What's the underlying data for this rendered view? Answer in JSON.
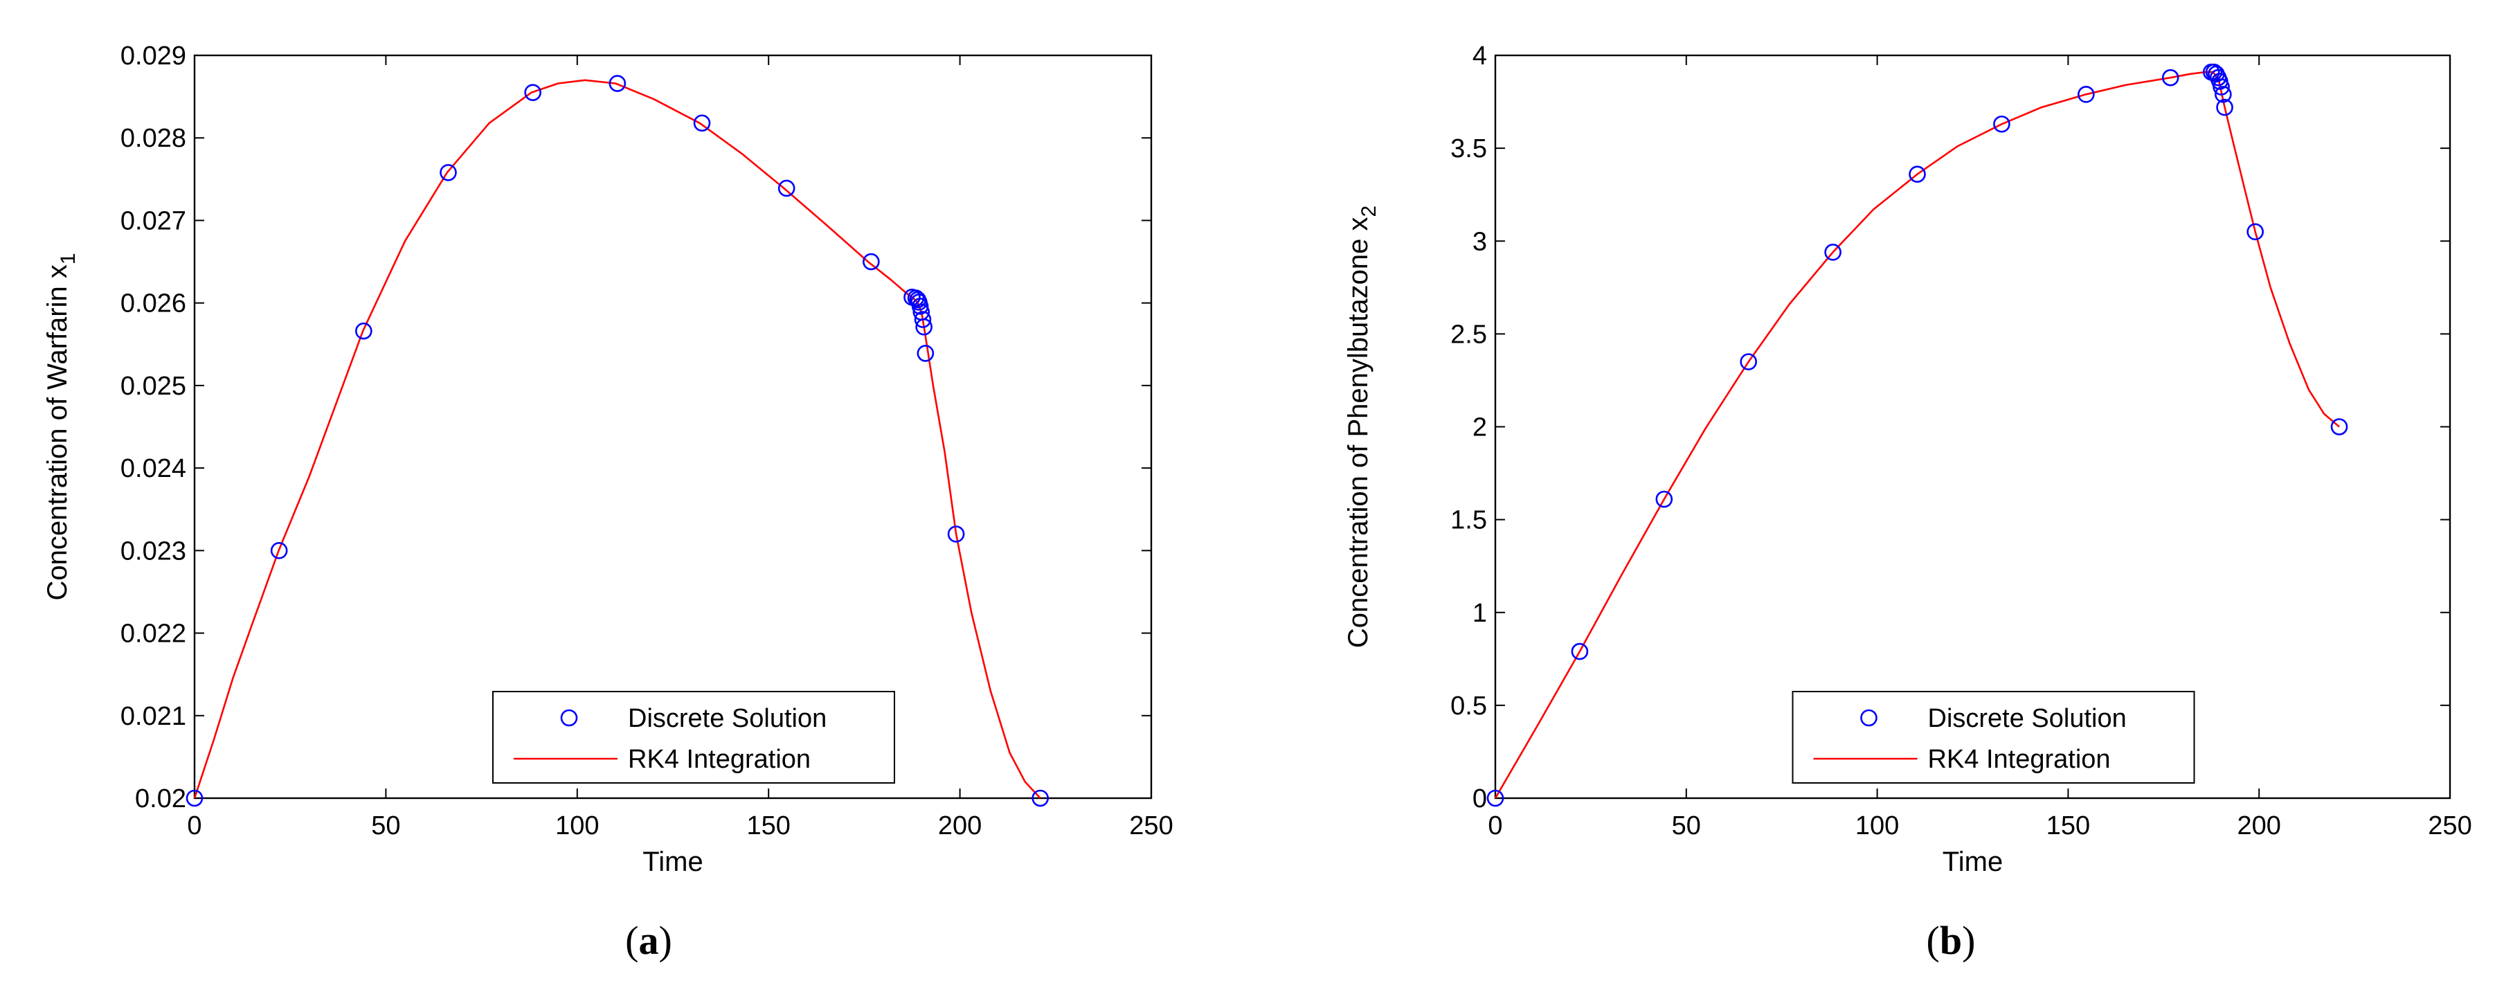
{
  "chart_data": [
    {
      "type": "line",
      "panel_label": "(a)",
      "panel_letter": "a",
      "xlabel": "Time",
      "ylabel": "Concentration of Warfarin x",
      "ylabel_subscript": "1",
      "xlim": [
        0,
        250
      ],
      "ylim": [
        0.02,
        0.029
      ],
      "xticks": [
        0,
        50,
        100,
        150,
        200,
        250
      ],
      "xtick_labels": [
        "0",
        "50",
        "100",
        "150",
        "200",
        "250"
      ],
      "yticks": [
        0.02,
        0.021,
        0.022,
        0.023,
        0.024,
        0.025,
        0.026,
        0.027,
        0.028,
        0.029
      ],
      "ytick_labels": [
        "0.02",
        "0.021",
        "0.022",
        "0.023",
        "0.024",
        "0.025",
        "0.026",
        "0.027",
        "0.028",
        "0.029"
      ],
      "legend": {
        "position": "bottom-center",
        "entries": [
          "Discrete Solution",
          "RK4 Integration"
        ]
      },
      "series": [
        {
          "name": "Discrete Solution",
          "style": "markers",
          "marker": "circle",
          "color": "#0000ff",
          "x": [
            0,
            22.1,
            44.2,
            66.3,
            88.4,
            110.5,
            132.6,
            154.7,
            176.8,
            187.5,
            188.5,
            189.0,
            189.3,
            189.6,
            189.9,
            190.3,
            190.6,
            191.0,
            199.0,
            221.0
          ],
          "y": [
            0.02,
            0.023,
            0.02566,
            0.02758,
            0.02855,
            0.02866,
            0.02818,
            0.02739,
            0.0265,
            0.02607,
            0.02606,
            0.02604,
            0.02601,
            0.02596,
            0.02589,
            0.0258,
            0.02571,
            0.02539,
            0.0232,
            0.02
          ]
        },
        {
          "name": "RK4 Integration",
          "style": "line",
          "color": "#ff0000",
          "x": [
            0,
            5,
            10,
            15,
            22,
            30,
            44,
            55,
            66,
            77,
            88,
            95,
            102,
            110,
            120,
            132,
            143,
            154,
            165,
            176,
            182,
            186,
            188,
            189,
            190,
            191,
            193,
            196,
            199,
            203,
            208,
            213,
            217,
            221
          ],
          "y": [
            0.02,
            0.0207,
            0.02145,
            0.0221,
            0.023,
            0.0239,
            0.02566,
            0.02675,
            0.02758,
            0.02818,
            0.02855,
            0.02866,
            0.0287,
            0.02866,
            0.02847,
            0.02818,
            0.02781,
            0.02739,
            0.02695,
            0.0265,
            0.02628,
            0.02612,
            0.02605,
            0.026,
            0.02588,
            0.0256,
            0.025,
            0.0242,
            0.0232,
            0.02225,
            0.0213,
            0.02055,
            0.0202,
            0.02
          ]
        }
      ]
    },
    {
      "type": "line",
      "panel_label": "(b)",
      "panel_letter": "b",
      "xlabel": "Time",
      "ylabel": "Concentration of Phenylbutazone x",
      "ylabel_subscript": "2",
      "xlim": [
        0,
        250
      ],
      "ylim": [
        0,
        4
      ],
      "xticks": [
        0,
        50,
        100,
        150,
        200,
        250
      ],
      "xtick_labels": [
        "0",
        "50",
        "100",
        "150",
        "200",
        "250"
      ],
      "yticks": [
        0,
        0.5,
        1,
        1.5,
        2,
        2.5,
        3,
        3.5,
        4
      ],
      "ytick_labels": [
        "0",
        "0.5",
        "1",
        "1.5",
        "2",
        "2.5",
        "3",
        "3.5",
        "4"
      ],
      "legend": {
        "position": "bottom-center",
        "entries": [
          "Discrete Solution",
          "RK4 Integration"
        ]
      },
      "series": [
        {
          "name": "Discrete Solution",
          "style": "markers",
          "marker": "circle",
          "color": "#0000ff",
          "x": [
            0,
            22.1,
            44.2,
            66.3,
            88.4,
            110.5,
            132.6,
            154.7,
            176.8,
            187.5,
            188.2,
            188.8,
            189.3,
            189.7,
            190.1,
            190.6,
            191.0,
            199.0,
            221.0
          ],
          "y": [
            0,
            0.79,
            1.61,
            2.35,
            2.94,
            3.36,
            3.63,
            3.79,
            3.88,
            3.91,
            3.91,
            3.9,
            3.88,
            3.86,
            3.83,
            3.79,
            3.72,
            3.05,
            2.0
          ]
        },
        {
          "name": "RK4 Integration",
          "style": "line",
          "color": "#ff0000",
          "x": [
            0,
            11,
            22.1,
            33,
            44.2,
            55,
            66.3,
            77,
            88.4,
            99,
            110.5,
            121,
            132.6,
            143,
            154.7,
            165,
            176.8,
            182,
            186,
            188,
            189.5,
            191,
            193,
            196,
            199,
            203,
            208,
            213,
            217,
            221
          ],
          "y": [
            0,
            0.39,
            0.79,
            1.2,
            1.61,
            1.99,
            2.35,
            2.66,
            2.94,
            3.17,
            3.36,
            3.51,
            3.63,
            3.72,
            3.79,
            3.84,
            3.88,
            3.9,
            3.91,
            3.91,
            3.86,
            3.72,
            3.55,
            3.3,
            3.05,
            2.75,
            2.45,
            2.2,
            2.07,
            2.0
          ]
        }
      ]
    }
  ]
}
